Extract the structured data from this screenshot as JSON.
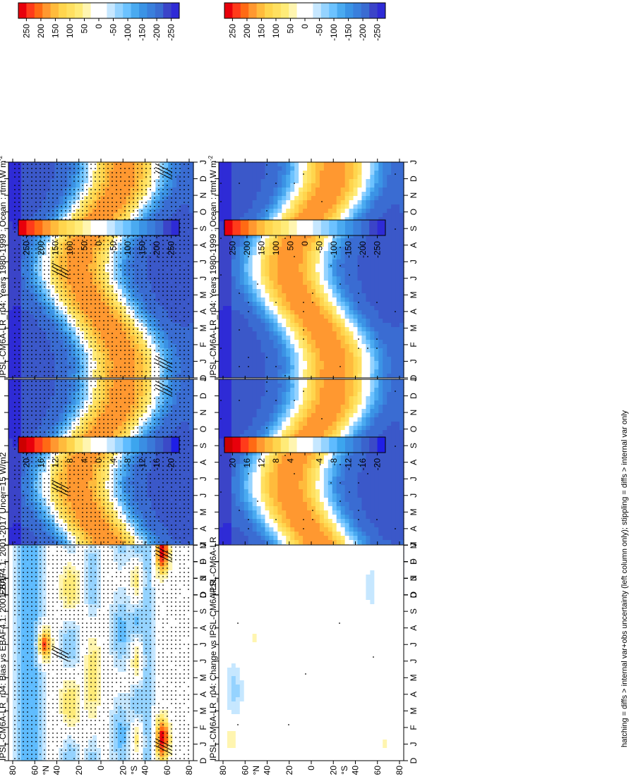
{
  "figure": {
    "footnote": "hatching = diffs > internal var+obs uncertainty (left column only); stippling = diffs > internal var only"
  },
  "chart_data": [
    {
      "type": "heatmap",
      "id": "panel-model-left",
      "title": "IPSL-CM6A-LR_r04: Years 1980-1999 : Ocean : rtmt W m",
      "title_sup": "-2",
      "x_ticks": [
        "D",
        "J",
        "F",
        "M",
        "A",
        "M",
        "J",
        "J",
        "A",
        "S",
        "O",
        "N",
        "D",
        "J"
      ],
      "y_ticks": [
        "80",
        "60",
        "40",
        "20",
        "0",
        "20",
        "40",
        "60",
        "80"
      ],
      "y_label_n": "°N",
      "y_label_s": "°S",
      "colorbar": [
        "250",
        "200",
        "150",
        "100",
        "50",
        "0",
        "-50",
        "-100",
        "-150",
        "-200",
        "-250"
      ],
      "field": "abs",
      "stipple": "dense",
      "hatch": true
    },
    {
      "type": "heatmap",
      "id": "panel-model-right",
      "title": "IPSL-CM6A-LR_r04: Years 1980-1999 : Ocean : rtmt W m",
      "title_sup": "-2",
      "x_ticks": [
        "D",
        "J",
        "F",
        "M",
        "A",
        "M",
        "J",
        "J",
        "A",
        "S",
        "O",
        "N",
        "D",
        "J"
      ],
      "y_ticks": [
        "80",
        "60",
        "40",
        "20",
        "0",
        "20",
        "40",
        "60",
        "80"
      ],
      "y_label_n": "°N",
      "y_label_s": "°S",
      "colorbar": [
        "250",
        "200",
        "150",
        "100",
        "50",
        "0",
        "-50",
        "-100",
        "-150",
        "-200",
        "-250"
      ],
      "field": "abs",
      "stipple": "sparse",
      "hatch": false
    },
    {
      "type": "heatmap",
      "id": "panel-obs",
      "title": "EBAF4.1: 2001-2017 Uncer=15 W/m2",
      "title_sup": "",
      "x_ticks": [
        "D",
        "J",
        "F",
        "M",
        "A",
        "M",
        "J",
        "J",
        "A",
        "S",
        "O",
        "N",
        "D",
        "J"
      ],
      "y_ticks": [
        "80",
        "60",
        "40",
        "20",
        "0",
        "20",
        "40",
        "60",
        "80"
      ],
      "y_label_n": "°N",
      "y_label_s": "°S",
      "colorbar": [
        "250",
        "200",
        "150",
        "100",
        "50",
        "0",
        "-50",
        "-100",
        "-150",
        "-200",
        "-250"
      ],
      "field": "abs",
      "stipple": "dense",
      "hatch": true
    },
    {
      "type": "heatmap",
      "id": "panel-ensemble",
      "title": "IPSL-CM6A-LR",
      "title_sup": "",
      "x_ticks": [
        "D",
        "J",
        "F",
        "M",
        "A",
        "M",
        "J",
        "J",
        "A",
        "S",
        "O",
        "N",
        "D",
        "J"
      ],
      "y_ticks": [
        "80",
        "60",
        "40",
        "20",
        "0",
        "20",
        "40",
        "60",
        "80"
      ],
      "y_label_n": "°N",
      "y_label_s": "°S",
      "colorbar": [
        "250",
        "200",
        "150",
        "100",
        "50",
        "0",
        "-50",
        "-100",
        "-150",
        "-200",
        "-250"
      ],
      "field": "abs",
      "stipple": "sparse",
      "hatch": false
    },
    {
      "type": "heatmap",
      "id": "panel-bias",
      "title": "IPSL-CM6A-LR_r04: Bias vs EBAF4.1: 2001-2017",
      "title_sup": "",
      "x_ticks": [
        "D",
        "J",
        "F",
        "M",
        "A",
        "M",
        "J",
        "J",
        "A",
        "S",
        "O",
        "N",
        "D",
        "J"
      ],
      "y_ticks": [
        "80",
        "60",
        "40",
        "20",
        "0",
        "20",
        "40",
        "60",
        "80"
      ],
      "y_label_n": "°N",
      "y_label_s": "°S",
      "colorbar": [
        "20",
        "16",
        "12",
        "8",
        "4",
        "0",
        "-4",
        "-8",
        "-12",
        "-16",
        "-20"
      ],
      "field": "bias",
      "stipple": "dense",
      "hatch": true
    },
    {
      "type": "heatmap",
      "id": "panel-change",
      "title": "IPSL-CM6A-LR_r04: Change vs IPSL-CM6A-LR",
      "title_sup": "",
      "x_ticks": [
        "D",
        "J",
        "F",
        "M",
        "A",
        "M",
        "J",
        "J",
        "A",
        "S",
        "O",
        "N",
        "D",
        "J"
      ],
      "y_ticks": [
        "80",
        "60",
        "40",
        "20",
        "0",
        "20",
        "40",
        "60",
        "80"
      ],
      "y_label_n": "°N",
      "y_label_s": "°S",
      "colorbar": [
        "20",
        "16",
        "12",
        "8",
        "4",
        "",
        "-4",
        "-8",
        "-12",
        "-16",
        "-20"
      ],
      "field": "change",
      "stipple": "few",
      "hatch": false
    }
  ],
  "colors": {
    "palette": [
      "#e8000b",
      "#ff3b1a",
      "#ff6a14",
      "#ff9830",
      "#ffbb3c",
      "#ffd54d",
      "#ffeb78",
      "#fff5b0",
      "#ffffff",
      "#ffffff",
      "#c6e7ff",
      "#95d3ff",
      "#5fbcff",
      "#3ca5ee",
      "#3a8ee3",
      "#3a79d8",
      "#3a63cc",
      "#3b4ac7",
      "#2e2bd6",
      "#1f1fe6"
    ]
  }
}
